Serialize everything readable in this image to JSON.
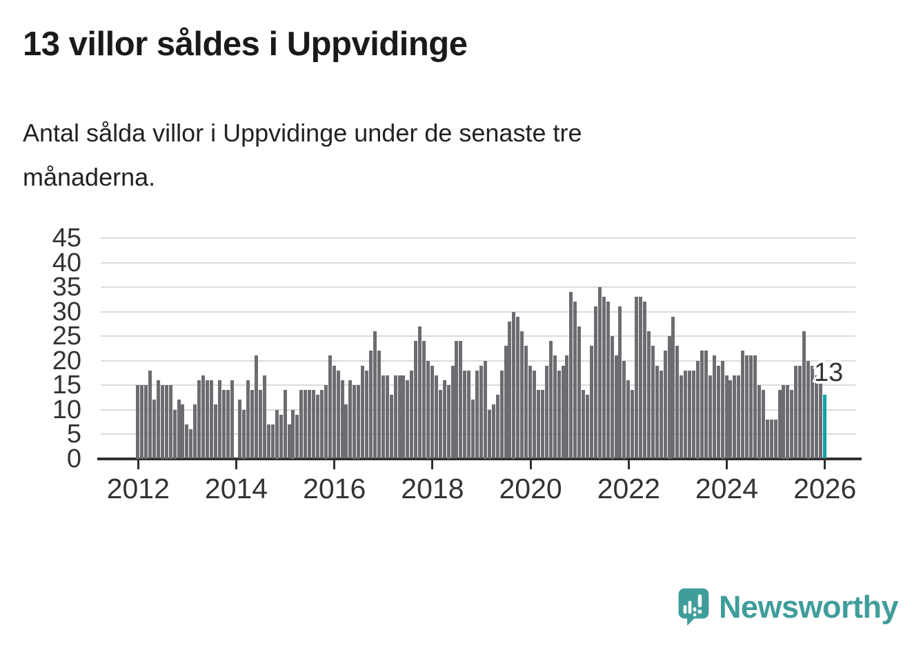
{
  "header": {
    "title": "13 villor såldes i Uppvidinge",
    "subtitle_lines": [
      "Antal sålda villor i Uppvidinge under de senaste tre",
      "månaderna."
    ]
  },
  "chart_data": {
    "type": "bar",
    "title": "13 villor såldes i Uppvidinge",
    "description": "Antal sålda villor i Uppvidinge under de senaste tre månaderna.",
    "frequency": "monthly-rolling-3-month-sum",
    "start": "2012-01",
    "end": "2026-01",
    "values": [
      15,
      15,
      15,
      18,
      12,
      16,
      15,
      15,
      15,
      10,
      12,
      11,
      7,
      6,
      11,
      16,
      17,
      16,
      16,
      11,
      16,
      14,
      14,
      16,
      0,
      12,
      10,
      16,
      14,
      21,
      14,
      17,
      7,
      7,
      10,
      9,
      14,
      7,
      10,
      9,
      14,
      14,
      14,
      14,
      13,
      14,
      15,
      21,
      19,
      18,
      16,
      11,
      16,
      15,
      15,
      19,
      18,
      22,
      26,
      22,
      17,
      17,
      13,
      17,
      17,
      17,
      16,
      18,
      24,
      27,
      24,
      20,
      19,
      17,
      14,
      16,
      15,
      19,
      24,
      24,
      18,
      18,
      12,
      18,
      19,
      20,
      10,
      11,
      13,
      18,
      23,
      28,
      30,
      29,
      26,
      23,
      19,
      18,
      14,
      14,
      19,
      24,
      21,
      18,
      19,
      21,
      34,
      32,
      27,
      14,
      13,
      23,
      31,
      35,
      33,
      32,
      25,
      21,
      31,
      20,
      16,
      14,
      33,
      33,
      32,
      26,
      23,
      19,
      18,
      22,
      25,
      29,
      23,
      17,
      18,
      18,
      18,
      20,
      22,
      22,
      17,
      21,
      19,
      20,
      17,
      16,
      17,
      17,
      22,
      21,
      21,
      21,
      15,
      14,
      8,
      8,
      8,
      14,
      15,
      15,
      14,
      19,
      19,
      26,
      20,
      19,
      17,
      16,
      13
    ],
    "highlight": {
      "index": 168,
      "value": 13,
      "label": "13",
      "color": "#0fa3a3"
    },
    "bar_color": "#6c6c71",
    "grid_color": "#dadada",
    "axis_color": "#2f2f2f",
    "yticks": [
      0,
      5,
      10,
      15,
      20,
      25,
      30,
      35,
      40,
      45
    ],
    "xticks": [
      2012,
      2014,
      2016,
      2018,
      2020,
      2022,
      2024,
      2026
    ],
    "ylim": [
      0,
      45
    ],
    "grid": true,
    "legend": false
  },
  "branding": {
    "logo_text": "Newsworthy",
    "logo_color": "#3f9d9a",
    "logo_icon": "newsworthy-speech-bubble-chart-icon"
  }
}
